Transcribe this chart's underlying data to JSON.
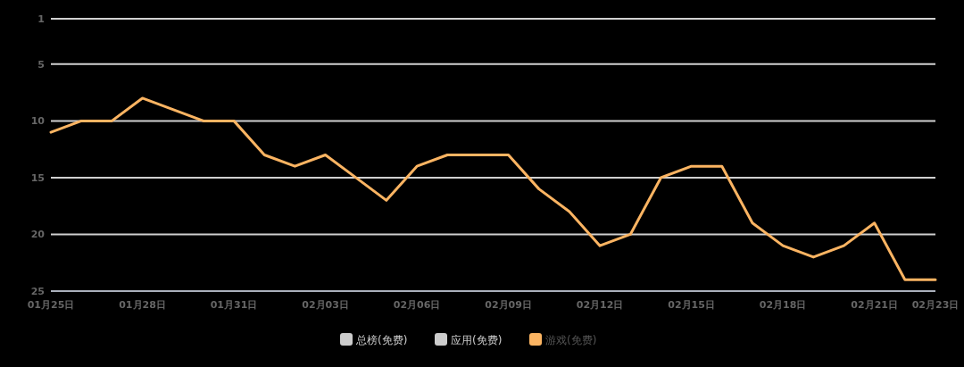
{
  "chart_data": {
    "type": "line",
    "categories": [
      "01月25日",
      null,
      null,
      "01月28日",
      null,
      null,
      "01月31日",
      null,
      null,
      "02月03日",
      null,
      null,
      "02月06日",
      null,
      null,
      "02月09日",
      null,
      null,
      "02月12日",
      null,
      null,
      "02月15日",
      null,
      null,
      "02月18日",
      null,
      null,
      "02月21日",
      null,
      "02月23日"
    ],
    "series": [
      {
        "name": "总榜(免费)",
        "color": "#cccccc",
        "values": [
          null,
          null,
          null,
          null,
          null,
          null,
          null,
          null,
          null,
          null,
          null,
          null,
          null,
          null,
          null,
          null,
          null,
          null,
          null,
          null,
          null,
          null,
          null,
          null,
          null,
          null,
          null,
          null,
          null,
          null
        ]
      },
      {
        "name": "应用(免费)",
        "color": "#cccccc",
        "values": [
          null,
          null,
          null,
          null,
          null,
          null,
          null,
          null,
          null,
          null,
          null,
          null,
          null,
          null,
          null,
          null,
          null,
          null,
          null,
          null,
          null,
          null,
          null,
          null,
          null,
          null,
          null,
          null,
          null,
          null
        ]
      },
      {
        "name": "游戏(免费)",
        "color": "#fbb462",
        "values": [
          11,
          10,
          10,
          8,
          9,
          10,
          10,
          13,
          14,
          13,
          15,
          17,
          14,
          13,
          13,
          13,
          16,
          18,
          21,
          20,
          15,
          14,
          14,
          19,
          21,
          22,
          21,
          19,
          24,
          24
        ]
      }
    ],
    "ylim": [
      25,
      1
    ],
    "yticks": [
      1,
      5,
      10,
      15,
      20,
      25
    ],
    "grid": "y",
    "legend": "bottom"
  }
}
